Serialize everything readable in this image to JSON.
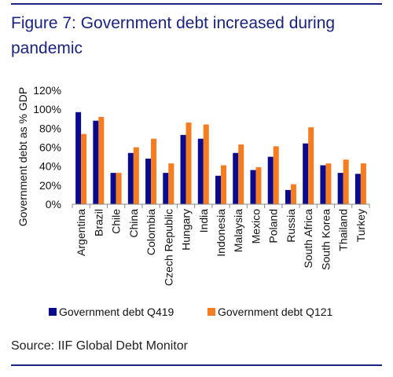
{
  "figure": {
    "title": "Figure 7:  Government debt increased during pandemic",
    "source": "Source:  IIF Global Debt Monitor"
  },
  "chart_data": {
    "type": "bar",
    "ylabel": "Government debt as % GDP",
    "xlabel": "",
    "ylim": [
      0,
      120
    ],
    "y_ticks": [
      "0%",
      "20%",
      "40%",
      "60%",
      "80%",
      "100%",
      "120%"
    ],
    "y_tick_values": [
      0,
      20,
      40,
      60,
      80,
      100,
      120
    ],
    "legend_position": "bottom",
    "grid": false,
    "categories": [
      "Argentina",
      "Brazil",
      "Chile",
      "China",
      "Colombia",
      "Czech Republic",
      "Hungary",
      "India",
      "Indonesia",
      "Malaysia",
      "Mexico",
      "Poland",
      "Russia",
      "South Africa",
      "South Korea",
      "Thailand",
      "Turkey"
    ],
    "series": [
      {
        "name": "Government debt Q419",
        "color": "#0a0a8c",
        "values": [
          97,
          88,
          33,
          54,
          48,
          33,
          73,
          69,
          30,
          54,
          36,
          50,
          15,
          64,
          41,
          33,
          32
        ]
      },
      {
        "name": "Government debt Q121",
        "color": "#f57c20",
        "values": [
          74,
          92,
          33,
          60,
          69,
          43,
          86,
          84,
          41,
          63,
          39,
          61,
          21,
          81,
          43,
          47,
          43
        ]
      }
    ]
  }
}
